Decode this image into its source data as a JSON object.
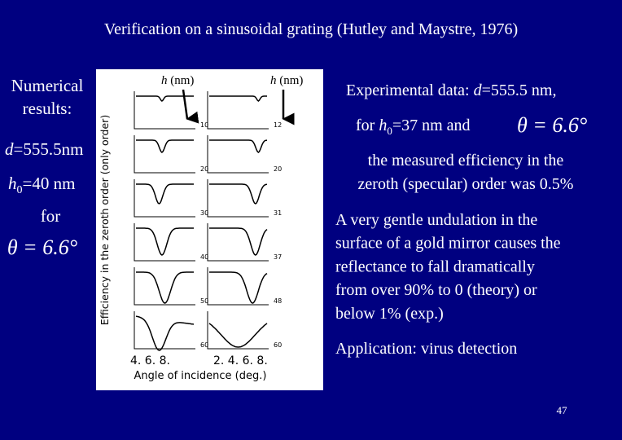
{
  "title": "Verification on a sinusoidal grating (Hutley and Maystre, 1976)",
  "left": {
    "lines": [
      "Numerical",
      "results:"
    ],
    "d": {
      "var": "d",
      "rest": "=555.5nm"
    },
    "h0": {
      "var": "h",
      "sub": "0",
      "rest": "=40 nm"
    },
    "for": "for",
    "theta": "θ = 6.6°"
  },
  "figure": {
    "y_label": "Efficiency in the zeroth order (only order)",
    "h_label_left": {
      "var": "h",
      "rest": " (nm)"
    },
    "h_label_right": {
      "var": "h",
      "rest": " (nm)"
    },
    "x_ticks_left": "4. 6. 8.",
    "x_ticks_right": "2. 4. 6. 8.",
    "x_label": "Angle of incidence (deg.)",
    "panel_labels_left": [
      "10",
      "20",
      "30",
      "40",
      "50",
      "60"
    ],
    "panel_labels_right": [
      "12",
      "20",
      "31",
      "37",
      "48",
      "60"
    ]
  },
  "right": {
    "exp": {
      "text": "Experimental data: ",
      "var": "d",
      "rest": "=555.5 nm,"
    },
    "for_h0": {
      "text": "for ",
      "var": "h",
      "sub": "0",
      "rest": "=37 nm and"
    },
    "theta": "θ = 6.6°",
    "measured": [
      "the measured efficiency in the",
      "zeroth (specular) order was 0.5%"
    ],
    "undulation": [
      "A very gentle undulation in the",
      "surface of a gold mirror causes the",
      "reflectance to fall dramatically",
      "from over 90% to 0 (theory) or",
      "below 1% (exp.)"
    ],
    "application": "Application: virus detection"
  },
  "page_number": "47"
}
